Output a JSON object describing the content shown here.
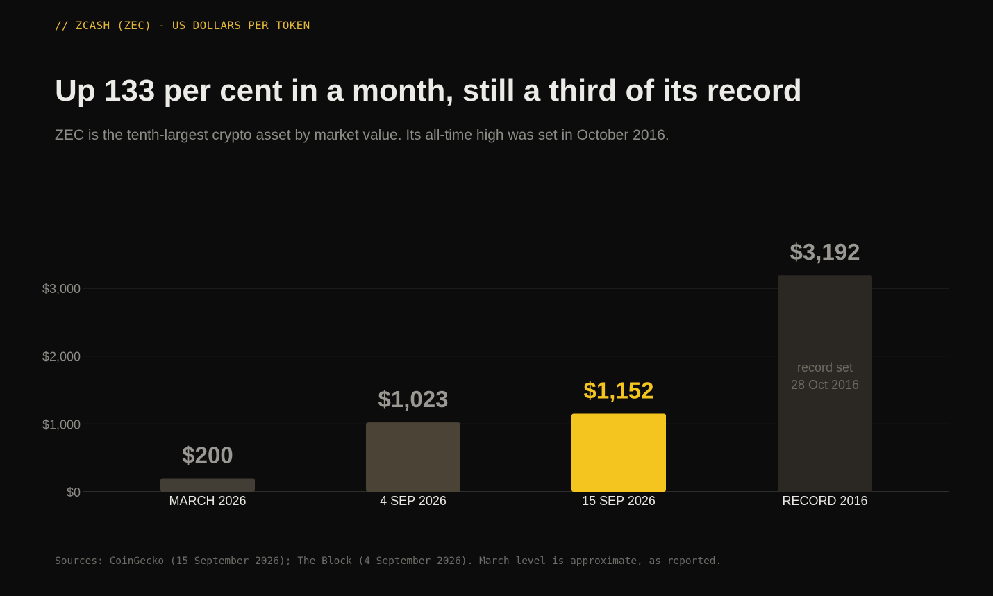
{
  "header": {
    "kicker": "// ZCASH (ZEC) - US DOLLARS PER TOKEN",
    "title": "Up 133 per cent in a month, still a third of its record",
    "subtitle": "ZEC is the tenth-largest crypto asset by market value. Its all-time high was set in October 2016."
  },
  "chart_data": {
    "type": "bar",
    "categories": [
      "MARCH 2026",
      "4 SEP 2026",
      "15 SEP 2026",
      "RECORD 2016"
    ],
    "values": [
      200,
      1023,
      1152,
      3192
    ],
    "value_labels": [
      "$200",
      "$1,023",
      "$1,152",
      "$3,192"
    ],
    "bar_colors": [
      "#423d35",
      "#4a4336",
      "#f4c41f",
      "#2b2823"
    ],
    "value_label_colors": [
      "#9a9892",
      "#9a9892",
      "#f4c41f",
      "#9a9892"
    ],
    "highlight_index": 2,
    "ylim": [
      0,
      3200
    ],
    "yticks": [
      0,
      1000,
      2000,
      3000
    ],
    "ytick_labels": [
      "$0",
      "$1,000",
      "$2,000",
      "$3,000"
    ],
    "annotations": [
      {
        "bar_index": 3,
        "lines": [
          "record set",
          "28 Oct 2016"
        ]
      }
    ],
    "grid": true,
    "xlabel": "",
    "ylabel": ""
  },
  "footer": {
    "source": "Sources: CoinGecko (15 September 2026); The Block (4 September 2026). March level is approximate, as reported."
  },
  "colors": {
    "background": "#0c0c0c",
    "accent": "#f4c41f",
    "gridline": "#2a2a2a"
  }
}
